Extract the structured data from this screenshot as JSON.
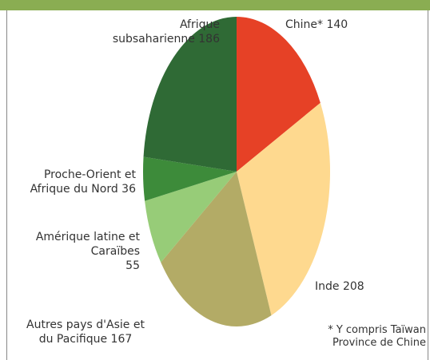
{
  "chart_data": {
    "type": "pie",
    "categories": [
      "Chine*",
      "Inde",
      "Autres pays d'Asie et du Pacifique",
      "Amérique latine et Caraïbes",
      "Proche-Orient et Afrique du Nord",
      "Afrique subsaharienne"
    ],
    "values": [
      140,
      208,
      167,
      55,
      36,
      186
    ],
    "colors": [
      "#e64126",
      "#fed98f",
      "#b3ab66",
      "#97cc78",
      "#3d8b3a",
      "#2f6a35"
    ],
    "annotation": "* Y compris Taïwan Province de Chine"
  }
}
